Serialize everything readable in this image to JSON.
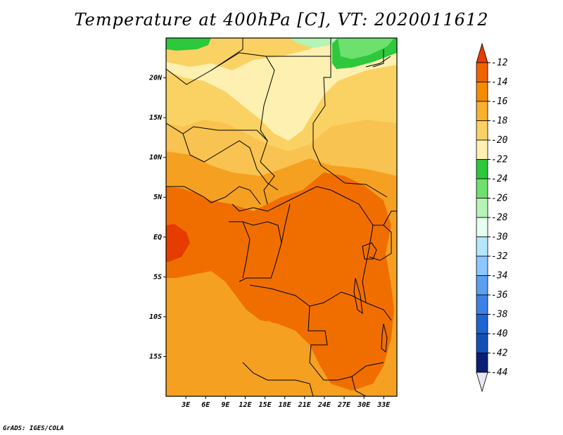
{
  "title": "Temperature at 400hPa [C], VT: 2020011612",
  "credit": "GrADS: IGES/COLA",
  "map": {
    "lon_range": [
      0,
      35
    ],
    "lat_range": [
      -20,
      25
    ],
    "lat_ticks": [
      {
        "lat": 20,
        "label": "20N"
      },
      {
        "lat": 15,
        "label": "15N"
      },
      {
        "lat": 10,
        "label": "10N"
      },
      {
        "lat": 5,
        "label": "5N"
      },
      {
        "lat": 0,
        "label": "EQ"
      },
      {
        "lat": -5,
        "label": "5S"
      },
      {
        "lat": -10,
        "label": "10S"
      },
      {
        "lat": -15,
        "label": "15S"
      }
    ],
    "lon_ticks": [
      {
        "lon": 3,
        "label": "3E"
      },
      {
        "lon": 6,
        "label": "6E"
      },
      {
        "lon": 9,
        "label": "9E"
      },
      {
        "lon": 12,
        "label": "12E"
      },
      {
        "lon": 15,
        "label": "15E"
      },
      {
        "lon": 18,
        "label": "18E"
      },
      {
        "lon": 21,
        "label": "21E"
      },
      {
        "lon": 24,
        "label": "24E"
      },
      {
        "lon": 27,
        "label": "27E"
      },
      {
        "lon": 30,
        "label": "30E"
      },
      {
        "lon": 33,
        "label": "33E"
      }
    ]
  },
  "colorbar": {
    "levels": [
      "-12",
      "-14",
      "-16",
      "-18",
      "-20",
      "-22",
      "-24",
      "-26",
      "-28",
      "-30",
      "-32",
      "-34",
      "-36",
      "-38",
      "-40",
      "-42",
      "-44"
    ],
    "colors": [
      "#e63c00",
      "#f06400",
      "#f58c00",
      "#f8b030",
      "#fad264",
      "#fdf0b0",
      "#2dc83c",
      "#6ee06e",
      "#b4f4b4",
      "#e6fff0",
      "#b4e6ff",
      "#8cc8ff",
      "#5aa0f0",
      "#3c82e6",
      "#1e64d2",
      "#1450b4",
      "#0a1e78",
      "#e8e8f4"
    ]
  }
}
